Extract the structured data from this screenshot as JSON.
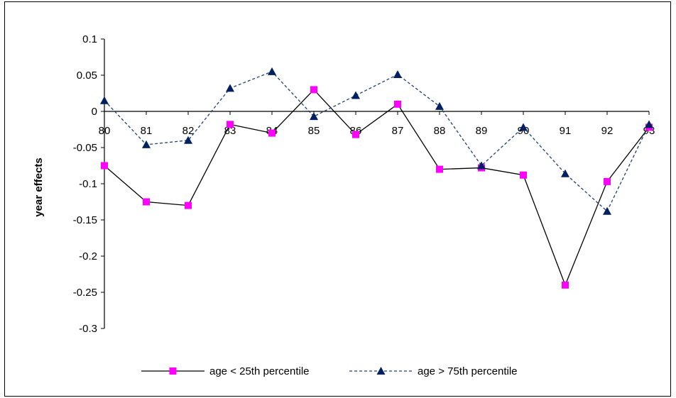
{
  "chart_data": {
    "type": "line",
    "title": "",
    "xlabel": "",
    "ylabel": "year effects",
    "categories": [
      "80",
      "81",
      "82",
      "83",
      "84",
      "85",
      "86",
      "87",
      "88",
      "89",
      "90",
      "91",
      "92",
      "93"
    ],
    "ylim": [
      -0.3,
      0.1
    ],
    "yticks": [
      0.1,
      0.05,
      0,
      -0.05,
      -0.1,
      -0.15,
      -0.2,
      -0.25,
      -0.3
    ],
    "ytick_labels": [
      "0.1",
      "0.05",
      "0",
      "-0.05",
      "-0.1",
      "-0.15",
      "-0.2",
      "-0.25",
      "-0.3"
    ],
    "grid": false,
    "legend_position": "bottom",
    "series": [
      {
        "name": "age < 25th percentile",
        "color": "#ff00ff",
        "line_color": "#000000",
        "line_style": "solid",
        "marker": "square",
        "values": [
          -0.075,
          -0.125,
          -0.13,
          -0.018,
          -0.03,
          0.03,
          -0.032,
          0.01,
          -0.08,
          -0.078,
          -0.088,
          -0.24,
          -0.097,
          -0.022
        ]
      },
      {
        "name": "age > 75th percentile",
        "color": "#002060",
        "line_color": "#1f3f6f",
        "line_style": "dashed",
        "marker": "triangle",
        "values": [
          0.015,
          -0.046,
          -0.04,
          0.032,
          0.055,
          -0.007,
          0.022,
          0.051,
          0.007,
          -0.075,
          -0.022,
          -0.086,
          -0.138,
          -0.018
        ]
      }
    ]
  }
}
